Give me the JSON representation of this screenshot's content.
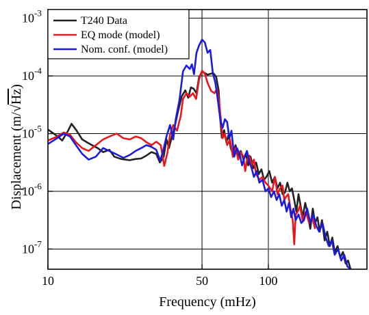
{
  "chart_data": {
    "type": "line",
    "title": "",
    "xlabel": "Frequency (mHz)",
    "ylabel_main": "Displacement  (m/",
    "ylabel_sqrt": "Hz",
    "ylabel_close": ")",
    "x_scale": "log",
    "y_scale": "log",
    "xlim": [
      10,
      280
    ],
    "ylim_exponent": [
      -7.35,
      -2.85
    ],
    "grid": true,
    "legend_position": "top-left",
    "x_ticks": [
      {
        "value": 10,
        "label": "10"
      },
      {
        "value": 50,
        "label": "50"
      },
      {
        "value": 100,
        "label": "100"
      }
    ],
    "y_ticks": [
      {
        "exponent": -3,
        "base": "10",
        "sup": "-3"
      },
      {
        "exponent": -4,
        "base": "10",
        "sup": "-4"
      },
      {
        "exponent": -5,
        "base": "10",
        "sup": "-5"
      },
      {
        "exponent": -6,
        "base": "10",
        "sup": "-6"
      },
      {
        "exponent": -7,
        "base": "10",
        "sup": "-7"
      }
    ],
    "series": [
      {
        "name": "T240 Data",
        "color": "#222222",
        "points": [
          [
            10,
            -4.93
          ],
          [
            11,
            -5.04
          ],
          [
            11.6,
            -5.12
          ],
          [
            12.3,
            -4.96
          ],
          [
            12.8,
            -4.83
          ],
          [
            13.5,
            -4.95
          ],
          [
            14.3,
            -5.1
          ],
          [
            15.5,
            -5.18
          ],
          [
            16.8,
            -5.25
          ],
          [
            17.8,
            -5.32
          ],
          [
            19,
            -5.28
          ],
          [
            20,
            -5.4
          ],
          [
            21.5,
            -5.44
          ],
          [
            23.5,
            -5.46
          ],
          [
            25,
            -5.44
          ],
          [
            26.5,
            -5.43
          ],
          [
            28,
            -5.38
          ],
          [
            29.5,
            -5.32
          ],
          [
            31,
            -5.35
          ],
          [
            32.2,
            -5.5
          ],
          [
            33.5,
            -5.4
          ],
          [
            34.5,
            -5.1
          ],
          [
            35.4,
            -5.25
          ],
          [
            36.5,
            -5.05
          ],
          [
            37.5,
            -4.9
          ],
          [
            39,
            -4.6
          ],
          [
            40.5,
            -4.35
          ],
          [
            42,
            -4.25
          ],
          [
            43.3,
            -4.38
          ],
          [
            44.5,
            -4.2
          ],
          [
            45.8,
            -4.22
          ],
          [
            47.2,
            -4.3
          ],
          [
            48.5,
            -4.02
          ],
          [
            50,
            -3.93
          ],
          [
            51.5,
            -3.95
          ],
          [
            53,
            -3.98
          ],
          [
            55,
            -3.96
          ],
          [
            56.5,
            -3.96
          ],
          [
            58,
            -4.02
          ],
          [
            59.5,
            -4.25
          ],
          [
            60.5,
            -4.75
          ],
          [
            61.5,
            -5.07
          ],
          [
            63,
            -4.94
          ],
          [
            64.5,
            -5.15
          ],
          [
            66,
            -5.02
          ],
          [
            67.5,
            -5.25
          ],
          [
            69,
            -5.35
          ],
          [
            71,
            -5.2
          ],
          [
            73,
            -5.4
          ],
          [
            75,
            -5.3
          ],
          [
            77,
            -5.45
          ],
          [
            79,
            -5.35
          ],
          [
            81,
            -5.55
          ],
          [
            83,
            -5.4
          ],
          [
            85.5,
            -5.6
          ],
          [
            88,
            -5.5
          ],
          [
            90.5,
            -5.7
          ],
          [
            93,
            -5.62
          ],
          [
            95.5,
            -5.8
          ],
          [
            98,
            -5.75
          ],
          [
            101,
            -5.65
          ],
          [
            104,
            -5.85
          ],
          [
            107,
            -5.75
          ],
          [
            110,
            -5.95
          ],
          [
            113,
            -5.85
          ],
          [
            116,
            -6.05
          ],
          [
            119,
            -6.02
          ],
          [
            122,
            -5.85
          ],
          [
            125,
            -6.0
          ],
          [
            128,
            -5.95
          ],
          [
            131,
            -6.15
          ],
          [
            134,
            -6.35
          ],
          [
            137,
            -6.05
          ],
          [
            140,
            -6.25
          ],
          [
            143,
            -6.45
          ],
          [
            147,
            -6.2
          ],
          [
            151,
            -6.4
          ],
          [
            155,
            -6.65
          ],
          [
            159,
            -6.3
          ],
          [
            163,
            -6.55
          ],
          [
            167,
            -6.45
          ],
          [
            171,
            -6.7
          ],
          [
            175,
            -6.5
          ],
          [
            180,
            -6.85
          ],
          [
            185,
            -6.7
          ],
          [
            190,
            -6.95
          ],
          [
            195,
            -6.8
          ],
          [
            200,
            -7.05
          ],
          [
            206,
            -6.95
          ],
          [
            212,
            -7.15
          ],
          [
            218,
            -7.05
          ],
          [
            224,
            -7.25
          ],
          [
            230,
            -7.2
          ],
          [
            236,
            -7.35
          ]
        ]
      },
      {
        "name": "EQ mode (model)",
        "color": "#e8171b",
        "points": [
          [
            10,
            -5.12
          ],
          [
            11,
            -5.05
          ],
          [
            11.8,
            -4.98
          ],
          [
            12.6,
            -5.02
          ],
          [
            13.4,
            -5.15
          ],
          [
            14.3,
            -5.25
          ],
          [
            15.3,
            -5.3
          ],
          [
            16.5,
            -5.2
          ],
          [
            17.8,
            -5.1
          ],
          [
            19,
            -5.05
          ],
          [
            20.5,
            -5.0
          ],
          [
            22,
            -5.08
          ],
          [
            23.5,
            -5.1
          ],
          [
            25,
            -5.05
          ],
          [
            26.5,
            -5.08
          ],
          [
            28,
            -5.15
          ],
          [
            29.5,
            -5.2
          ],
          [
            31,
            -5.14
          ],
          [
            32.5,
            -5.2
          ],
          [
            33.7,
            -5.56
          ],
          [
            34.8,
            -5.34
          ],
          [
            35.8,
            -5.02
          ],
          [
            37,
            -4.85
          ],
          [
            38.5,
            -4.95
          ],
          [
            40,
            -4.7
          ],
          [
            41,
            -4.4
          ],
          [
            42.5,
            -4.3
          ],
          [
            44,
            -4.36
          ],
          [
            45.5,
            -4.3
          ],
          [
            47,
            -4.4
          ],
          [
            48.5,
            -4.06
          ],
          [
            50,
            -3.91
          ],
          [
            51.5,
            -3.96
          ],
          [
            53,
            -4.12
          ],
          [
            55,
            -4.26
          ],
          [
            57,
            -4.3
          ],
          [
            58.5,
            -4.22
          ],
          [
            60,
            -4.5
          ],
          [
            61,
            -4.8
          ],
          [
            62,
            -5.08
          ],
          [
            63.5,
            -5.0
          ],
          [
            65,
            -5.2
          ],
          [
            67,
            -5.1
          ],
          [
            69,
            -5.4
          ],
          [
            71,
            -5.25
          ],
          [
            73,
            -5.45
          ],
          [
            75,
            -5.32
          ],
          [
            77,
            -5.4
          ],
          [
            78.5,
            -5.65
          ],
          [
            80,
            -5.45
          ],
          [
            82,
            -5.38
          ],
          [
            84,
            -5.55
          ],
          [
            86,
            -5.45
          ],
          [
            88,
            -5.7
          ],
          [
            91,
            -5.8
          ],
          [
            94,
            -5.75
          ],
          [
            97,
            -5.85
          ],
          [
            100,
            -5.9
          ],
          [
            104,
            -6.0
          ],
          [
            107,
            -5.75
          ],
          [
            110,
            -6.05
          ],
          [
            113,
            -5.95
          ],
          [
            116,
            -5.9
          ],
          [
            118,
            -6.15
          ],
          [
            120,
            -6.1
          ],
          [
            123,
            -6.05
          ],
          [
            126,
            -6.3
          ],
          [
            129,
            -6.5
          ],
          [
            131,
            -6.92
          ],
          [
            133,
            -6.4
          ],
          [
            136,
            -6.35
          ],
          [
            139,
            -6.25
          ],
          [
            143,
            -6.5
          ],
          [
            148,
            -6.35
          ],
          [
            153,
            -6.55
          ],
          [
            158,
            -6.45
          ],
          [
            163,
            -6.65
          ]
        ]
      },
      {
        "name": "Nom. conf. (model)",
        "color": "#1a1adf",
        "points": [
          [
            10,
            -5.18
          ],
          [
            11,
            -5.08
          ],
          [
            11.8,
            -5.0
          ],
          [
            12.6,
            -5.05
          ],
          [
            13.4,
            -5.2
          ],
          [
            14.3,
            -5.35
          ],
          [
            15.3,
            -5.45
          ],
          [
            16.5,
            -5.4
          ],
          [
            17.8,
            -5.25
          ],
          [
            19,
            -5.3
          ],
          [
            20.5,
            -5.36
          ],
          [
            22,
            -5.42
          ],
          [
            23.5,
            -5.37
          ],
          [
            25,
            -5.3
          ],
          [
            26.5,
            -5.25
          ],
          [
            28,
            -5.2
          ],
          [
            29.5,
            -5.23
          ],
          [
            31,
            -5.28
          ],
          [
            32.3,
            -5.47
          ],
          [
            33.3,
            -5.3
          ],
          [
            34.5,
            -5.05
          ],
          [
            35.8,
            -4.85
          ],
          [
            37,
            -5.1
          ],
          [
            38,
            -4.75
          ],
          [
            39.5,
            -4.42
          ],
          [
            41,
            -3.92
          ],
          [
            42.5,
            -3.82
          ],
          [
            44,
            -3.88
          ],
          [
            45,
            -3.8
          ],
          [
            46,
            -3.97
          ],
          [
            47.2,
            -3.6
          ],
          [
            48.5,
            -3.47
          ],
          [
            50,
            -3.37
          ],
          [
            51.5,
            -3.42
          ],
          [
            53,
            -3.6
          ],
          [
            54.5,
            -3.55
          ],
          [
            56,
            -3.95
          ],
          [
            57.5,
            -4.12
          ],
          [
            59,
            -4.42
          ],
          [
            60.5,
            -4.75
          ],
          [
            62,
            -4.9
          ],
          [
            63.5,
            -4.75
          ],
          [
            65,
            -4.8
          ],
          [
            66.5,
            -5.08
          ],
          [
            68,
            -4.95
          ],
          [
            70,
            -5.4
          ],
          [
            72,
            -5.25
          ],
          [
            74,
            -5.35
          ],
          [
            76,
            -5.55
          ],
          [
            78,
            -5.4
          ],
          [
            80,
            -5.3
          ],
          [
            82,
            -5.5
          ],
          [
            84,
            -5.6
          ],
          [
            86,
            -5.75
          ],
          [
            88.5,
            -5.65
          ],
          [
            91,
            -5.85
          ],
          [
            94,
            -5.8
          ],
          [
            97,
            -6.0
          ],
          [
            100,
            -5.95
          ],
          [
            103,
            -6.1
          ],
          [
            106,
            -6.0
          ],
          [
            109,
            -6.15
          ],
          [
            112,
            -6.05
          ],
          [
            115,
            -6.25
          ],
          [
            118,
            -6.15
          ],
          [
            121,
            -6.35
          ],
          [
            124,
            -6.2
          ],
          [
            127,
            -6.45
          ],
          [
            130,
            -6.3
          ],
          [
            133,
            -6.5
          ],
          [
            137,
            -6.4
          ],
          [
            141,
            -6.55
          ],
          [
            145,
            -6.5
          ],
          [
            150,
            -6.3
          ],
          [
            155,
            -6.55
          ],
          [
            160,
            -6.4
          ],
          [
            165,
            -6.6
          ],
          [
            170,
            -6.7
          ],
          [
            176,
            -6.55
          ],
          [
            182,
            -6.8
          ],
          [
            188,
            -6.95
          ],
          [
            194,
            -6.85
          ],
          [
            200,
            -7.1
          ],
          [
            207,
            -7.0
          ],
          [
            214,
            -7.2
          ],
          [
            221,
            -7.1
          ],
          [
            228,
            -7.3
          ],
          [
            236,
            -7.35
          ]
        ]
      }
    ]
  }
}
